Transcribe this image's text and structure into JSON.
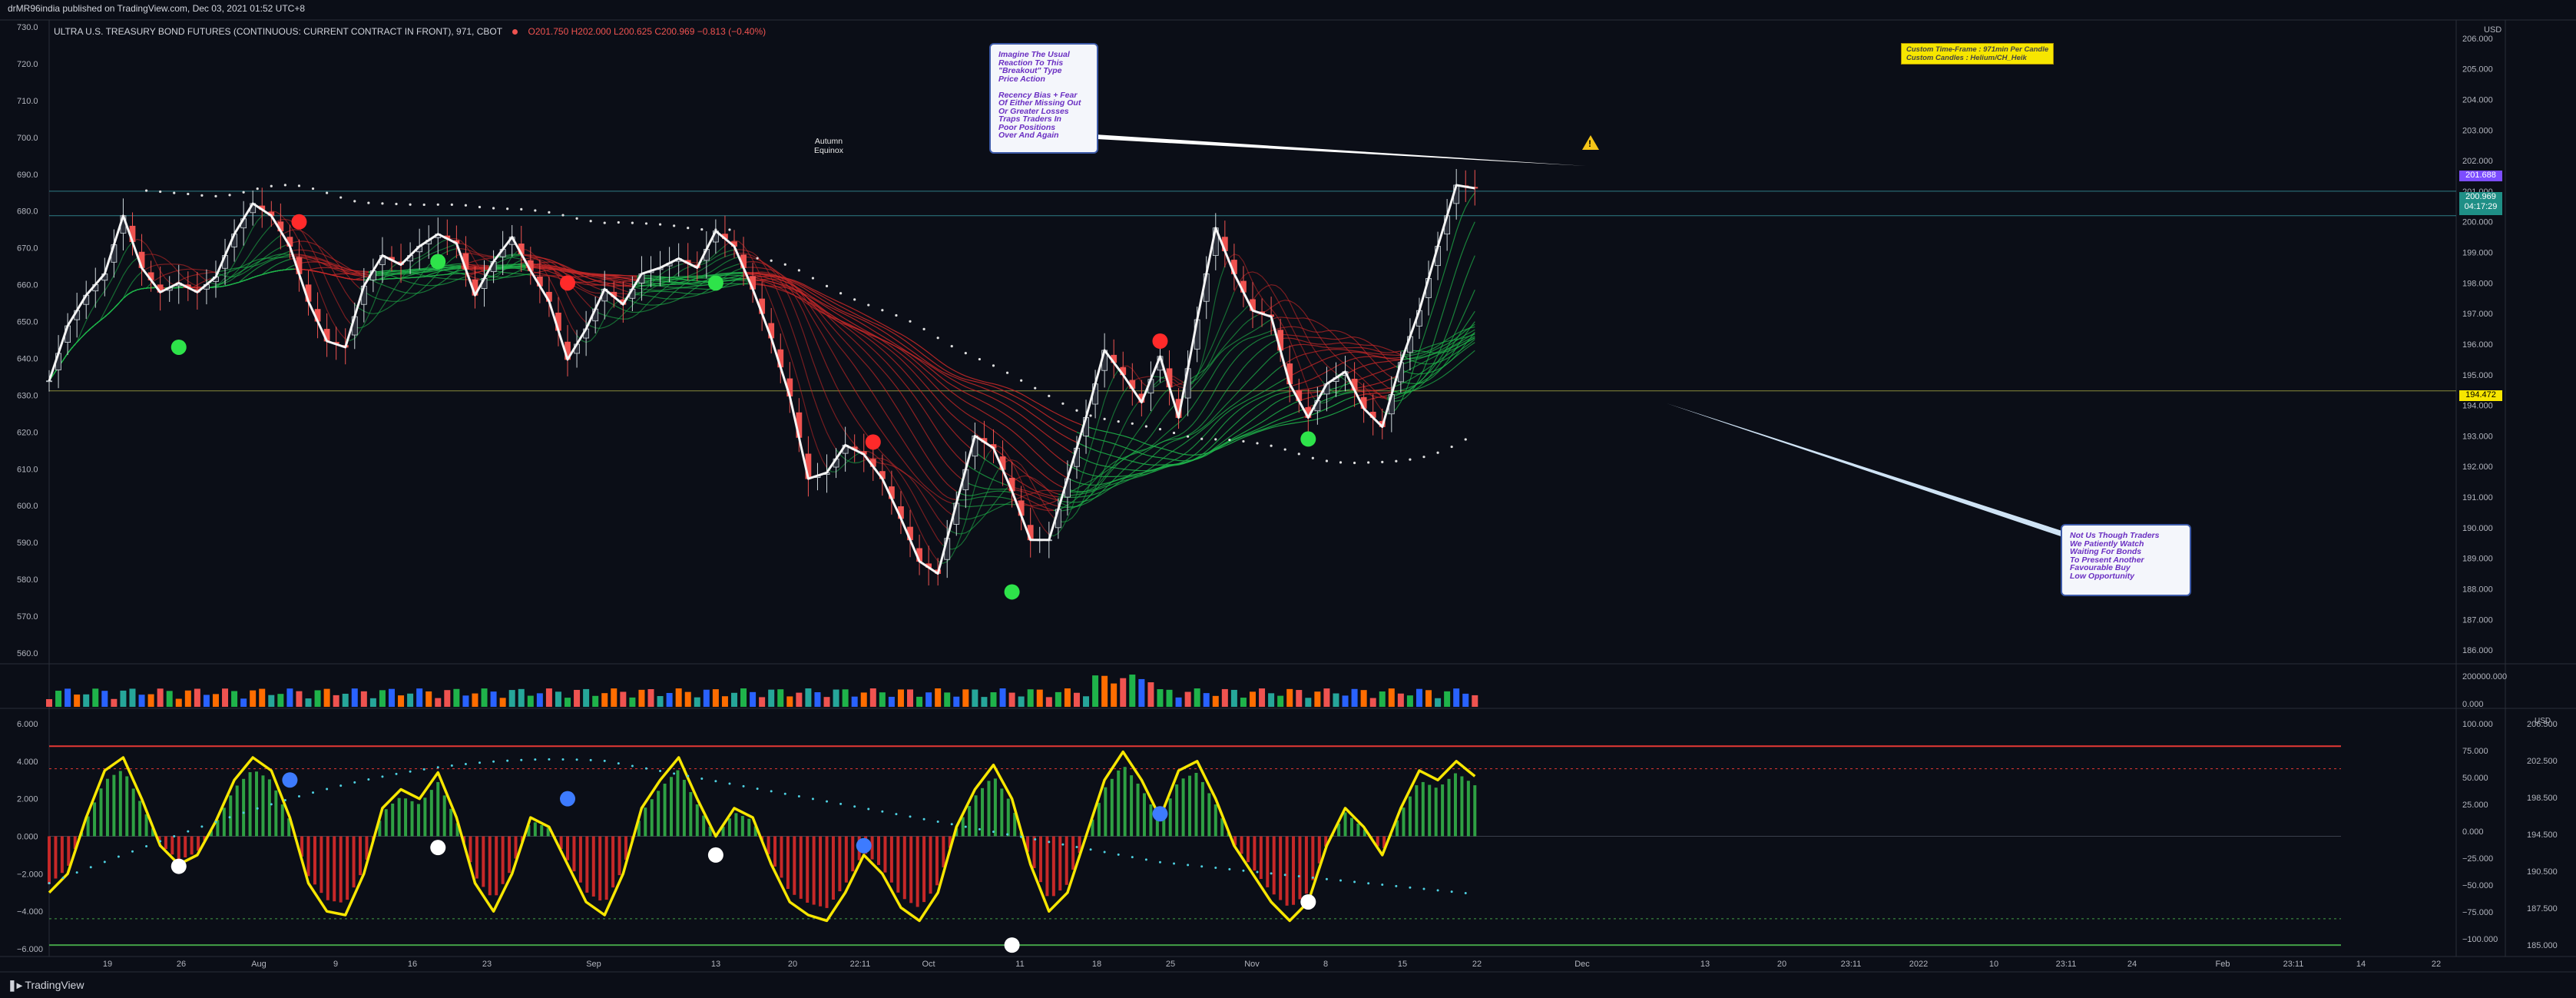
{
  "header": {
    "publisher": "drMR96india published on TradingView.com, Dec 03, 2021 01:52 UTC+8",
    "symbol_title": "ULTRA U.S. TREASURY BOND FUTURES (CONTINUOUS: CURRENT CONTRACT IN FRONT), 971, CBOT",
    "ohlc": "O201.750  H202.000  L200.625  C200.969  −0.813 (−0.40%)"
  },
  "footer": {
    "brand": "TradingView"
  },
  "notes": {
    "left_note": "Imagine The Usual\nReaction To This\n\"Breakout\" Type\nPrice Action\n\nRecency Bias + Fear\nOf Either Missing Out\nOr Greater Losses\nTraps Traders In\nPoor Positions\nOver And Again",
    "right_note": "Not Us Though Traders\nWe Patiently Watch\nWaiting For Bonds\nTo Present Another\nFavourable Buy\nLow Opportunity",
    "custom": "Custom Time-Frame : 971min Per Candle\nCustom Candles : Helium/CH_Heik",
    "equinox": "Autumn\nEquinox"
  },
  "scale_labels": {
    "usd": "USD",
    "usd2": "USD"
  },
  "price_tags": {
    "last": "201.688",
    "close": "200.969",
    "countdown": "04:17:29",
    "line": "194.472"
  },
  "colors": {
    "bg": "#0b0e17",
    "up": "#26a69a",
    "down": "#ef5350",
    "osc_line": "#f7e600",
    "ribbon_green": "#1fb34a",
    "ribbon_red": "#c62828",
    "dots": "#e0e0e0"
  },
  "chart_data": {
    "type": "line",
    "main": {
      "left_axis_ticks": [
        "730.0",
        "720.0",
        "710.0",
        "700.0",
        "690.0",
        "680.0",
        "670.0",
        "660.0",
        "650.0",
        "640.0",
        "630.0",
        "620.0",
        "610.0",
        "600.0",
        "590.0",
        "580.0",
        "570.0",
        "560.0"
      ],
      "right_axis_ticks": [
        "206.000",
        "205.000",
        "204.000",
        "203.000",
        "202.000",
        "201.000",
        "200.000",
        "199.000",
        "198.000",
        "197.000",
        "196.000",
        "195.000",
        "194.000",
        "193.000",
        "192.000",
        "191.000",
        "190.000",
        "189.000",
        "188.000",
        "187.000",
        "186.000"
      ],
      "ylim": [
        185.6,
        206.6
      ],
      "price_path": [
        {
          "x": 0,
          "y": 194.8
        },
        {
          "x": 2,
          "y": 196.6
        },
        {
          "x": 4,
          "y": 197.6
        },
        {
          "x": 6,
          "y": 198.3
        },
        {
          "x": 8,
          "y": 200.2
        },
        {
          "x": 10,
          "y": 198.5
        },
        {
          "x": 12,
          "y": 197.7
        },
        {
          "x": 14,
          "y": 198.0
        },
        {
          "x": 16,
          "y": 197.7
        },
        {
          "x": 18,
          "y": 198.2
        },
        {
          "x": 20,
          "y": 199.6
        },
        {
          "x": 22,
          "y": 200.6
        },
        {
          "x": 24,
          "y": 200.2
        },
        {
          "x": 26,
          "y": 199.2
        },
        {
          "x": 28,
          "y": 197.4
        },
        {
          "x": 30,
          "y": 196.1
        },
        {
          "x": 32,
          "y": 195.9
        },
        {
          "x": 34,
          "y": 197.9
        },
        {
          "x": 36,
          "y": 198.9
        },
        {
          "x": 38,
          "y": 198.6
        },
        {
          "x": 40,
          "y": 199.2
        },
        {
          "x": 42,
          "y": 199.6
        },
        {
          "x": 44,
          "y": 199.3
        },
        {
          "x": 46,
          "y": 197.6
        },
        {
          "x": 48,
          "y": 198.7
        },
        {
          "x": 50,
          "y": 199.5
        },
        {
          "x": 52,
          "y": 198.4
        },
        {
          "x": 54,
          "y": 197.4
        },
        {
          "x": 56,
          "y": 195.5
        },
        {
          "x": 58,
          "y": 196.5
        },
        {
          "x": 60,
          "y": 197.8
        },
        {
          "x": 62,
          "y": 197.3
        },
        {
          "x": 64,
          "y": 198.3
        },
        {
          "x": 66,
          "y": 198.5
        },
        {
          "x": 68,
          "y": 198.8
        },
        {
          "x": 70,
          "y": 198.5
        },
        {
          "x": 72,
          "y": 199.7
        },
        {
          "x": 74,
          "y": 199.2
        },
        {
          "x": 76,
          "y": 197.8
        },
        {
          "x": 78,
          "y": 196.2
        },
        {
          "x": 80,
          "y": 194.3
        },
        {
          "x": 82,
          "y": 191.6
        },
        {
          "x": 84,
          "y": 191.8
        },
        {
          "x": 86,
          "y": 192.7
        },
        {
          "x": 88,
          "y": 192.4
        },
        {
          "x": 90,
          "y": 191.6
        },
        {
          "x": 92,
          "y": 190.3
        },
        {
          "x": 94,
          "y": 188.9
        },
        {
          "x": 96,
          "y": 188.5
        },
        {
          "x": 98,
          "y": 190.8
        },
        {
          "x": 100,
          "y": 193.0
        },
        {
          "x": 102,
          "y": 192.6
        },
        {
          "x": 104,
          "y": 191.2
        },
        {
          "x": 106,
          "y": 189.6
        },
        {
          "x": 108,
          "y": 189.6
        },
        {
          "x": 110,
          "y": 191.6
        },
        {
          "x": 112,
          "y": 193.6
        },
        {
          "x": 114,
          "y": 195.8
        },
        {
          "x": 116,
          "y": 195.0
        },
        {
          "x": 118,
          "y": 194.1
        },
        {
          "x": 120,
          "y": 195.6
        },
        {
          "x": 122,
          "y": 193.6
        },
        {
          "x": 124,
          "y": 196.8
        },
        {
          "x": 126,
          "y": 199.8
        },
        {
          "x": 128,
          "y": 198.3
        },
        {
          "x": 130,
          "y": 197.1
        },
        {
          "x": 132,
          "y": 196.9
        },
        {
          "x": 134,
          "y": 194.7
        },
        {
          "x": 136,
          "y": 193.6
        },
        {
          "x": 138,
          "y": 194.7
        },
        {
          "x": 140,
          "y": 195.1
        },
        {
          "x": 142,
          "y": 193.9
        },
        {
          "x": 144,
          "y": 193.3
        },
        {
          "x": 146,
          "y": 195.4
        },
        {
          "x": 148,
          "y": 197.1
        },
        {
          "x": 150,
          "y": 199.2
        },
        {
          "x": 152,
          "y": 201.2
        },
        {
          "x": 154,
          "y": 201.1
        }
      ],
      "signals": [
        {
          "x": 14,
          "y": 195.9,
          "color": "green"
        },
        {
          "x": 27,
          "y": 200.0,
          "color": "red"
        },
        {
          "x": 42,
          "y": 198.7,
          "color": "green"
        },
        {
          "x": 56,
          "y": 198.0,
          "color": "red"
        },
        {
          "x": 72,
          "y": 198.0,
          "color": "green"
        },
        {
          "x": 89,
          "y": 192.8,
          "color": "red"
        },
        {
          "x": 104,
          "y": 187.9,
          "color": "green"
        },
        {
          "x": 120,
          "y": 196.1,
          "color": "red"
        },
        {
          "x": 136,
          "y": 192.9,
          "color": "green"
        }
      ]
    },
    "volume": {
      "axis_ticks": [
        "200000.000",
        "0.000"
      ]
    },
    "oscillator": {
      "left_axis_ticks": [
        "6.000",
        "4.000",
        "2.000",
        "0.000",
        "−2.000",
        "−4.000",
        "−6.000"
      ],
      "right_axis_ticks_a": [
        "100.000",
        "75.000",
        "50.000",
        "25.000",
        "0.000",
        "−25.000",
        "−50.000",
        "−75.000",
        "−100.000"
      ],
      "right_axis_ticks_b": [
        "206.500",
        "202.500",
        "198.500",
        "194.500",
        "190.500",
        "187.500",
        "185.000"
      ],
      "ylim": [
        -6,
        6
      ],
      "path": [
        {
          "x": 0,
          "y": -3.0
        },
        {
          "x": 2,
          "y": -2.0
        },
        {
          "x": 4,
          "y": 1.0
        },
        {
          "x": 6,
          "y": 3.5
        },
        {
          "x": 8,
          "y": 4.2
        },
        {
          "x": 10,
          "y": 2.0
        },
        {
          "x": 12,
          "y": -0.5
        },
        {
          "x": 14,
          "y": -1.5
        },
        {
          "x": 16,
          "y": -1.0
        },
        {
          "x": 18,
          "y": 0.8
        },
        {
          "x": 20,
          "y": 3.0
        },
        {
          "x": 22,
          "y": 4.2
        },
        {
          "x": 24,
          "y": 3.5
        },
        {
          "x": 26,
          "y": 1.0
        },
        {
          "x": 28,
          "y": -2.5
        },
        {
          "x": 30,
          "y": -4.0
        },
        {
          "x": 32,
          "y": -4.2
        },
        {
          "x": 34,
          "y": -2.0
        },
        {
          "x": 36,
          "y": 1.5
        },
        {
          "x": 38,
          "y": 2.5
        },
        {
          "x": 40,
          "y": 2.0
        },
        {
          "x": 42,
          "y": 3.4
        },
        {
          "x": 44,
          "y": 1.0
        },
        {
          "x": 46,
          "y": -2.5
        },
        {
          "x": 48,
          "y": -4.0
        },
        {
          "x": 50,
          "y": -2.0
        },
        {
          "x": 52,
          "y": 1.0
        },
        {
          "x": 54,
          "y": 0.5
        },
        {
          "x": 56,
          "y": -1.5
        },
        {
          "x": 58,
          "y": -3.5
        },
        {
          "x": 60,
          "y": -4.2
        },
        {
          "x": 62,
          "y": -2.0
        },
        {
          "x": 64,
          "y": 1.5
        },
        {
          "x": 66,
          "y": 3.0
        },
        {
          "x": 68,
          "y": 4.2
        },
        {
          "x": 70,
          "y": 2.0
        },
        {
          "x": 72,
          "y": 0.0
        },
        {
          "x": 74,
          "y": 1.5
        },
        {
          "x": 76,
          "y": 1.0
        },
        {
          "x": 78,
          "y": -1.5
        },
        {
          "x": 80,
          "y": -3.5
        },
        {
          "x": 82,
          "y": -4.2
        },
        {
          "x": 84,
          "y": -4.5
        },
        {
          "x": 86,
          "y": -3.0
        },
        {
          "x": 88,
          "y": -1.0
        },
        {
          "x": 90,
          "y": -2.0
        },
        {
          "x": 92,
          "y": -3.8
        },
        {
          "x": 94,
          "y": -4.5
        },
        {
          "x": 96,
          "y": -3.0
        },
        {
          "x": 98,
          "y": 0.5
        },
        {
          "x": 100,
          "y": 2.5
        },
        {
          "x": 102,
          "y": 3.8
        },
        {
          "x": 104,
          "y": 2.0
        },
        {
          "x": 106,
          "y": -1.5
        },
        {
          "x": 108,
          "y": -4.0
        },
        {
          "x": 110,
          "y": -3.0
        },
        {
          "x": 112,
          "y": 0.0
        },
        {
          "x": 114,
          "y": 3.0
        },
        {
          "x": 116,
          "y": 4.5
        },
        {
          "x": 118,
          "y": 3.0
        },
        {
          "x": 120,
          "y": 1.0
        },
        {
          "x": 122,
          "y": 3.5
        },
        {
          "x": 124,
          "y": 4.0
        },
        {
          "x": 126,
          "y": 2.0
        },
        {
          "x": 128,
          "y": -0.5
        },
        {
          "x": 130,
          "y": -2.0
        },
        {
          "x": 132,
          "y": -3.5
        },
        {
          "x": 134,
          "y": -4.5
        },
        {
          "x": 136,
          "y": -3.5
        },
        {
          "x": 138,
          "y": -0.5
        },
        {
          "x": 140,
          "y": 1.5
        },
        {
          "x": 142,
          "y": 0.5
        },
        {
          "x": 144,
          "y": -1.0
        },
        {
          "x": 146,
          "y": 1.5
        },
        {
          "x": 148,
          "y": 3.5
        },
        {
          "x": 150,
          "y": 3.0
        },
        {
          "x": 152,
          "y": 4.0
        },
        {
          "x": 154,
          "y": 3.2
        }
      ]
    },
    "x_tick_labels": [
      "19",
      "26",
      "Aug",
      "9",
      "16",
      "23",
      "Sep",
      "13",
      "20",
      "22:11",
      "Oct",
      "11",
      "18",
      "25",
      "Nov",
      "8",
      "15",
      "22",
      "Dec",
      "13",
      "20",
      "23:11",
      "2022",
      "10",
      "23:11",
      "24",
      "Feb",
      "23:11",
      "14",
      "22"
    ]
  }
}
